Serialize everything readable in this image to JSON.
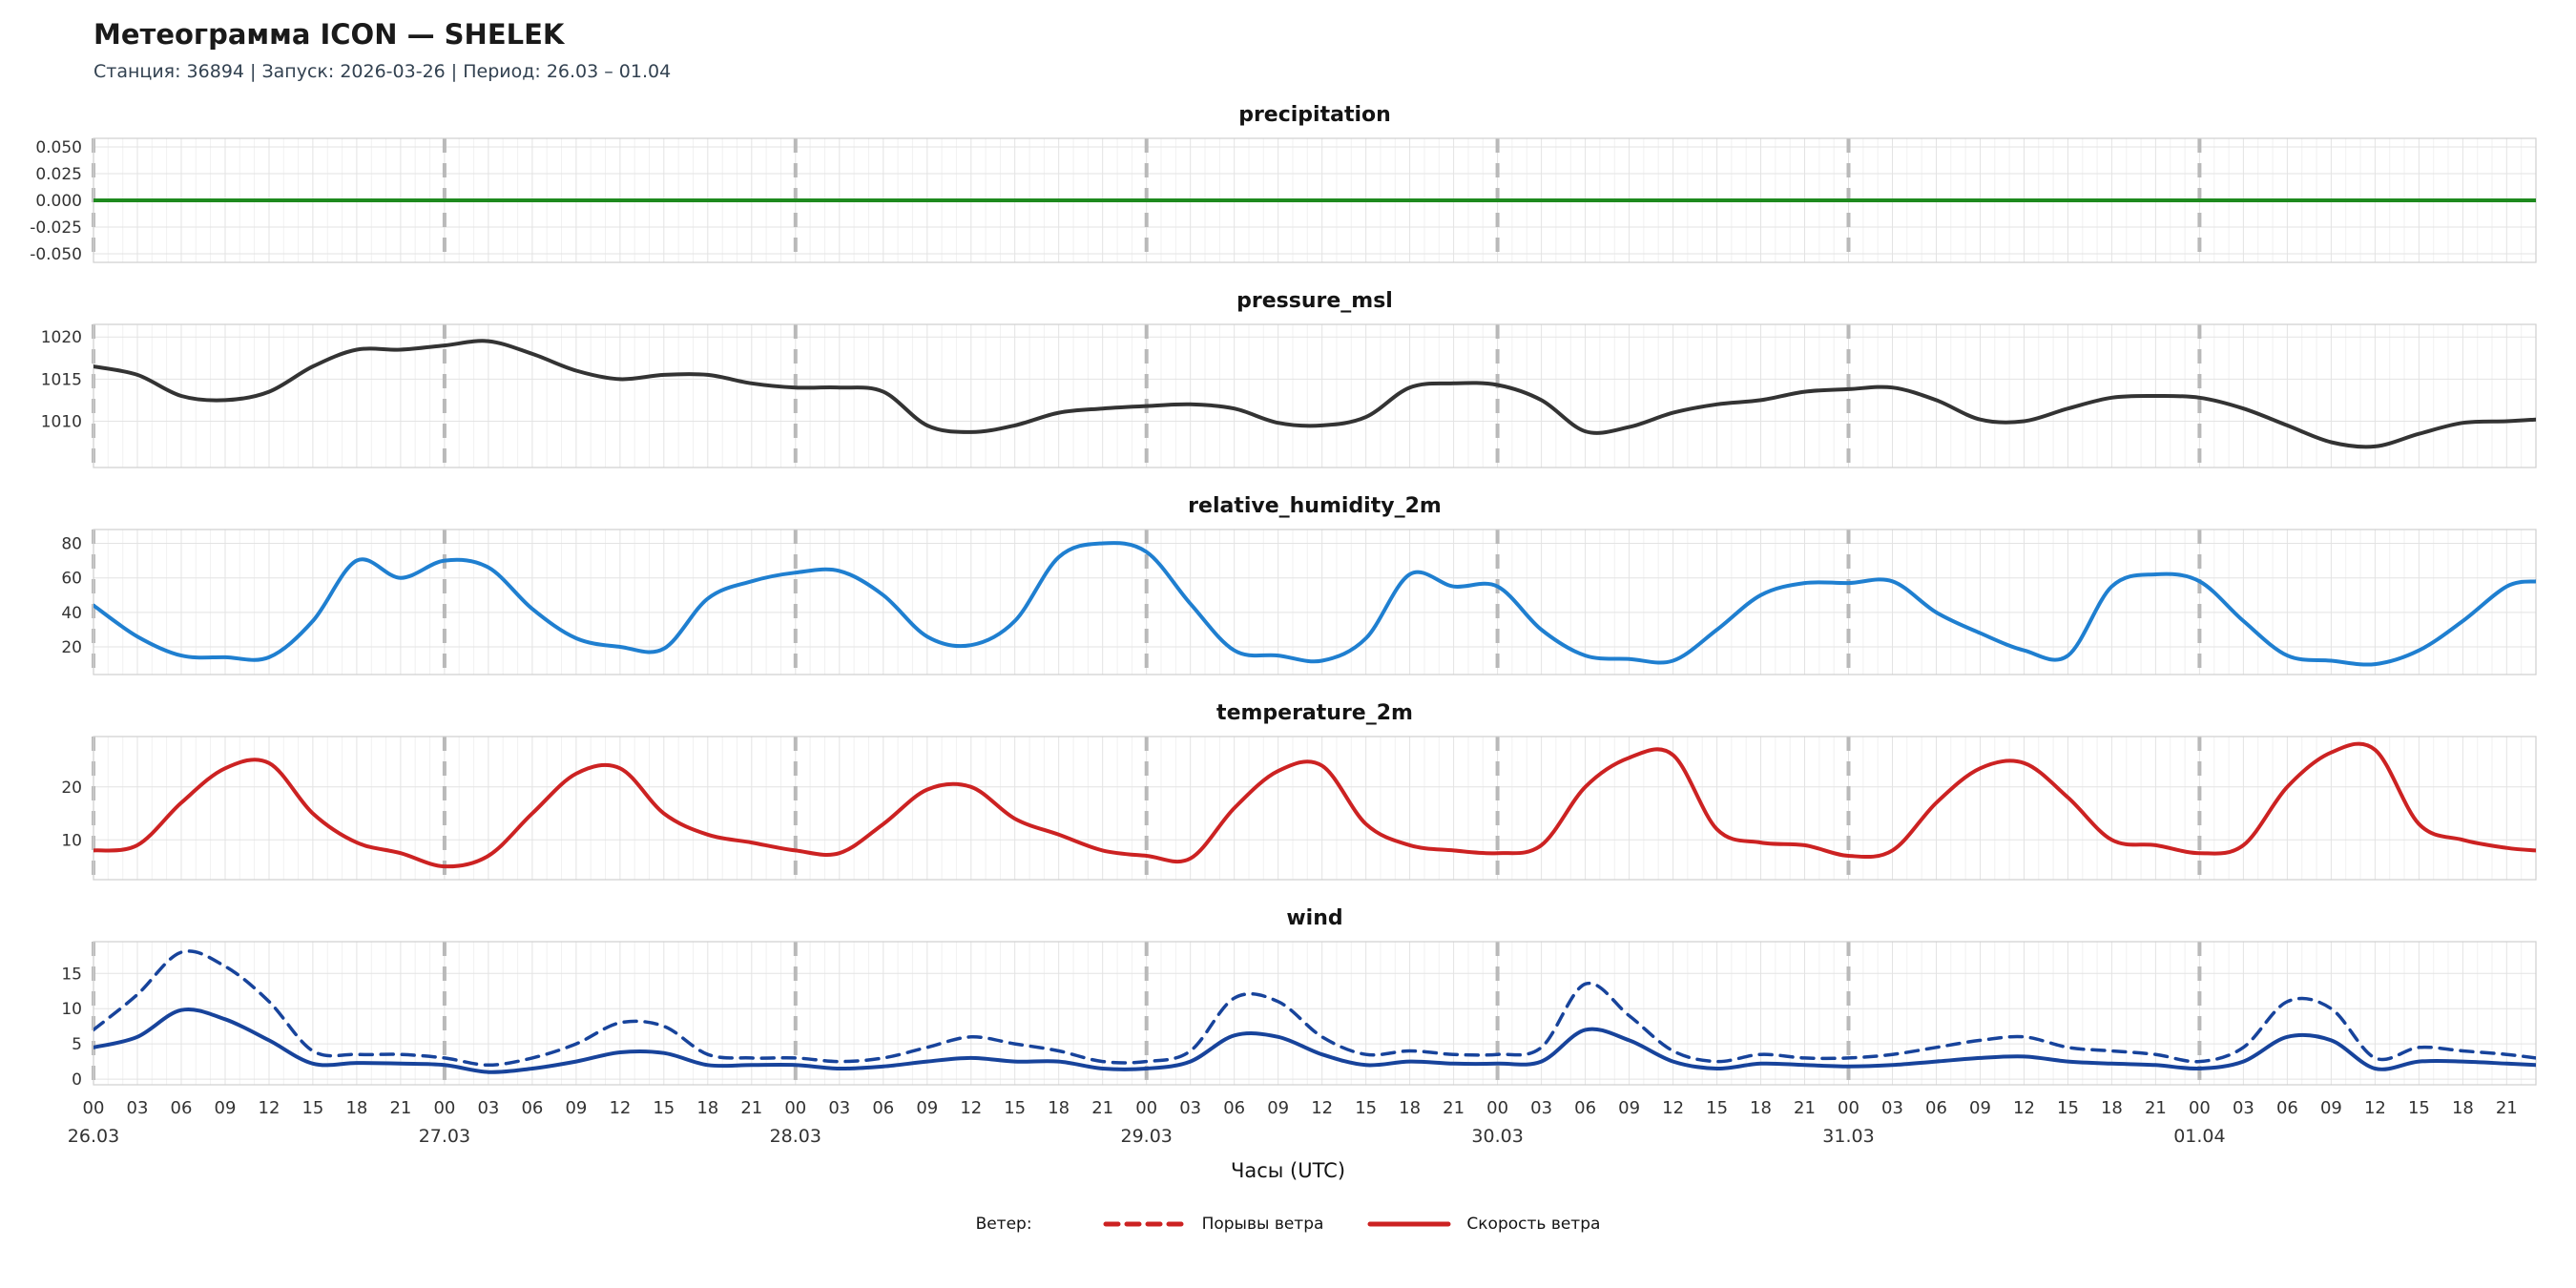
{
  "header": {
    "title": "Метеограмма ICON — SHELEK",
    "subtitle": "Станция: 36894  | Запуск: 2026-03-26  | Период: 26.03 – 01.04"
  },
  "xlabel": "Часы (UTC)",
  "legend": {
    "label": "Ветер:",
    "items": [
      {
        "label": "Порывы ветра",
        "style": "dashed",
        "color": "#cc2222"
      },
      {
        "label": "Скорость ветра",
        "style": "solid",
        "color": "#cc2222"
      }
    ]
  },
  "x_axis": {
    "domain": [
      0,
      167
    ],
    "hours_step": 3,
    "hours_count": 57,
    "hours_last": 167,
    "day_starts": [
      0,
      24,
      48,
      72,
      96,
      120,
      144
    ],
    "hour_labels": [
      "00",
      "03",
      "06",
      "09",
      "12",
      "15",
      "18",
      "21"
    ],
    "day_labels": [
      "26.03",
      "27.03",
      "28.03",
      "29.03",
      "30.03",
      "31.03",
      "01.04"
    ]
  },
  "chart_data": [
    {
      "type": "line",
      "title": "precipitation",
      "ylim": [
        -0.058,
        0.058
      ],
      "yticks": [
        -0.05,
        -0.025,
        0,
        0.025,
        0.05
      ],
      "ytick_labels": [
        "-0.050",
        "-0.025",
        "0.000",
        "0.025",
        "0.050"
      ],
      "series": [
        {
          "name": "precipitation",
          "color": "#1e8a1e",
          "dash": false,
          "width": 4,
          "values": [
            0,
            0,
            0,
            0,
            0,
            0,
            0,
            0,
            0,
            0,
            0,
            0,
            0,
            0,
            0,
            0,
            0,
            0,
            0,
            0,
            0,
            0,
            0,
            0,
            0,
            0,
            0,
            0,
            0,
            0,
            0,
            0,
            0,
            0,
            0,
            0,
            0,
            0,
            0,
            0,
            0,
            0,
            0,
            0,
            0,
            0,
            0,
            0,
            0,
            0,
            0,
            0,
            0,
            0,
            0,
            0,
            0
          ]
        }
      ]
    },
    {
      "type": "line",
      "title": "pressure_msl",
      "ylim": [
        1004.5,
        1021.5
      ],
      "yticks": [
        1010,
        1015,
        1020
      ],
      "ytick_labels": [
        "1010",
        "1015",
        "1020"
      ],
      "series": [
        {
          "name": "pressure_msl",
          "color": "#333333",
          "dash": false,
          "width": 4,
          "values": [
            1016.5,
            1015.5,
            1013,
            1012.5,
            1013.5,
            1016.5,
            1018.5,
            1018.5,
            1019,
            1019.5,
            1018,
            1016,
            1015,
            1015.5,
            1015.5,
            1014.5,
            1014,
            1014,
            1013.5,
            1009.5,
            1008.7,
            1009.5,
            1011,
            1011.5,
            1011.8,
            1012,
            1011.5,
            1009.8,
            1009.5,
            1010.5,
            1014,
            1014.5,
            1014.3,
            1012.5,
            1008.8,
            1009.3,
            1011,
            1012,
            1012.5,
            1013.5,
            1013.8,
            1014,
            1012.5,
            1010.2,
            1010,
            1011.5,
            1012.8,
            1013,
            1012.8,
            1011.5,
            1009.5,
            1007.5,
            1007,
            1008.5,
            1009.8,
            1010,
            1010.2
          ]
        }
      ]
    },
    {
      "type": "line",
      "title": "relative_humidity_2m",
      "ylim": [
        4,
        88
      ],
      "yticks": [
        20,
        40,
        60,
        80
      ],
      "ytick_labels": [
        "20",
        "40",
        "60",
        "80"
      ],
      "series": [
        {
          "name": "relative_humidity_2m",
          "color": "#1f7fd0",
          "dash": false,
          "width": 4,
          "values": [
            44,
            26,
            15,
            14,
            14,
            35,
            70,
            60,
            70,
            66,
            42,
            25,
            20,
            19,
            48,
            58,
            63,
            64,
            50,
            26,
            21,
            35,
            72,
            80,
            75,
            45,
            18,
            15,
            12,
            25,
            62,
            55,
            55,
            30,
            15,
            13,
            12,
            30,
            50,
            57,
            57,
            58,
            40,
            28,
            18,
            15,
            55,
            62,
            58,
            35,
            15,
            12,
            10,
            18,
            35,
            55,
            58
          ]
        }
      ]
    },
    {
      "type": "line",
      "title": "temperature_2m",
      "ylim": [
        2.5,
        29.5
      ],
      "yticks": [
        10,
        20
      ],
      "ytick_labels": [
        "10",
        "20"
      ],
      "series": [
        {
          "name": "temperature_2m",
          "color": "#cc2222",
          "dash": false,
          "width": 4,
          "values": [
            8,
            9,
            17,
            23.5,
            24.5,
            15,
            9.5,
            7.5,
            5,
            7,
            15,
            22.5,
            23.5,
            15,
            11,
            9.5,
            8,
            7.5,
            13,
            19.5,
            20,
            14,
            11,
            8,
            7,
            6.5,
            16,
            23,
            24,
            13,
            9,
            8,
            7.5,
            9,
            20,
            25.5,
            26,
            12,
            9.5,
            9,
            7,
            8,
            17,
            23.5,
            24.5,
            18,
            10,
            9,
            7.5,
            9,
            20,
            26.5,
            27,
            13,
            10,
            8.5,
            8
          ]
        }
      ]
    },
    {
      "type": "line",
      "title": "wind",
      "ylim": [
        -0.8,
        19.5
      ],
      "yticks": [
        0,
        5,
        10,
        15
      ],
      "ytick_labels": [
        "0",
        "5",
        "10",
        "15"
      ],
      "series": [
        {
          "name": "wind_gusts_10m",
          "color": "#17439b",
          "dash": true,
          "width": 3.5,
          "values": [
            7,
            12,
            18,
            16,
            11,
            4,
            3.5,
            3.5,
            3,
            2,
            3,
            5,
            8,
            7.5,
            3.5,
            3,
            3,
            2.5,
            3,
            4.5,
            6,
            5,
            4,
            2.5,
            2.5,
            4,
            11.5,
            11,
            6,
            3.5,
            4,
            3.5,
            3.5,
            4.5,
            13.5,
            9,
            4,
            2.5,
            3.5,
            3,
            3,
            3.5,
            4.5,
            5.5,
            6,
            4.5,
            4,
            3.5,
            2.5,
            4.5,
            11,
            10,
            3,
            4.5,
            4,
            3.5,
            3
          ]
        },
        {
          "name": "wind_speed_10m",
          "color": "#17439b",
          "dash": false,
          "width": 4,
          "values": [
            4.5,
            6,
            9.8,
            8.5,
            5.5,
            2.2,
            2.3,
            2.2,
            2,
            1,
            1.5,
            2.5,
            3.8,
            3.7,
            2,
            2,
            2,
            1.5,
            1.8,
            2.5,
            3,
            2.5,
            2.5,
            1.5,
            1.5,
            2.5,
            6.2,
            6,
            3.5,
            2,
            2.5,
            2.2,
            2.2,
            2.5,
            7,
            5.5,
            2.5,
            1.5,
            2.2,
            2,
            1.8,
            2,
            2.5,
            3,
            3.2,
            2.5,
            2.2,
            2,
            1.5,
            2.5,
            6,
            5.5,
            1.5,
            2.5,
            2.5,
            2.2,
            2
          ]
        }
      ]
    }
  ]
}
